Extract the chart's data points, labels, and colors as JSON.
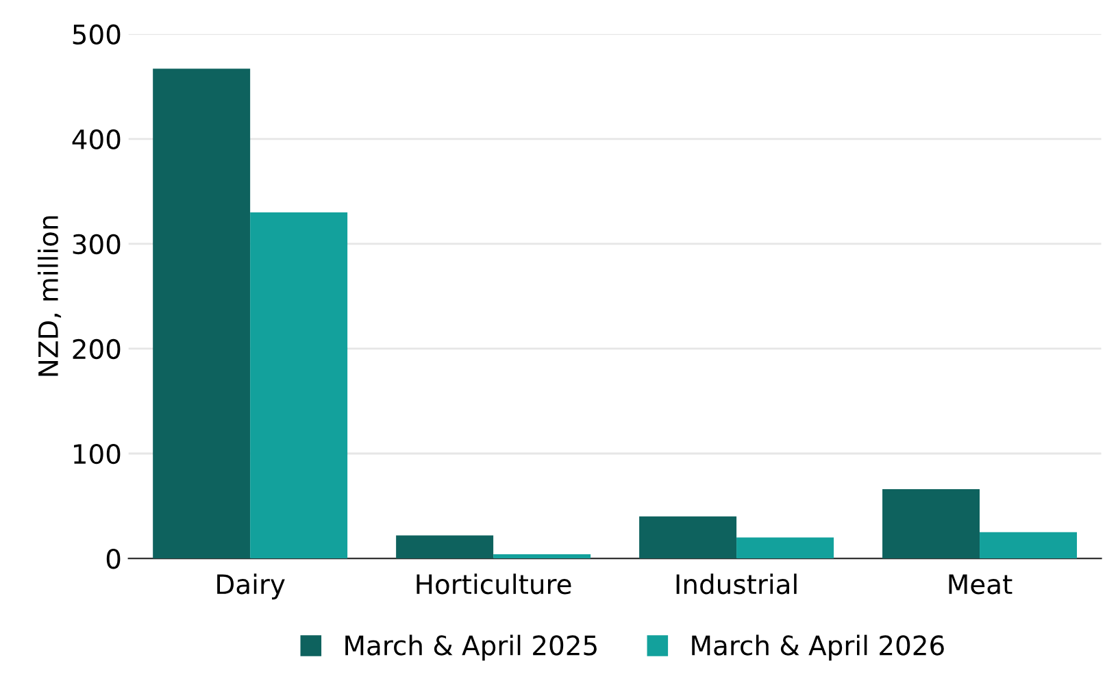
{
  "chart_data": {
    "type": "bar",
    "ylabel": "NZD, million",
    "categories": [
      "Dairy",
      "Horticulture",
      "Industrial",
      "Meat"
    ],
    "series": [
      {
        "name": "March & April 2025",
        "color": "#0e625e",
        "values": [
          467,
          22,
          40,
          66
        ]
      },
      {
        "name": "March & April 2026",
        "color": "#13a19c",
        "values": [
          330,
          4,
          20,
          25
        ]
      }
    ],
    "ylim": [
      0,
      500
    ],
    "yticks": [
      0,
      100,
      200,
      300,
      400,
      500
    ],
    "grid": "y",
    "legend": "bottom"
  }
}
